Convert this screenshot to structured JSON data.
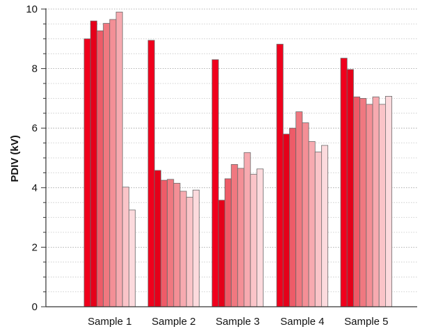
{
  "chart_data": {
    "type": "bar",
    "title": "",
    "xlabel": "",
    "ylabel": "PDIV (kV)",
    "ylim": [
      0,
      10
    ],
    "yticks": [
      0,
      2,
      4,
      6,
      8,
      10
    ],
    "minor_y_step": 0.5,
    "grid": "horizontal dotted, major and minor",
    "legend": "none",
    "categories": [
      "Sample 1",
      "Sample 2",
      "Sample 3",
      "Sample 4",
      "Sample 5"
    ],
    "bar_colors": [
      "#f0001c",
      "#e5001a",
      "#ee5b68",
      "#f07880",
      "#f48f96",
      "#f7aab0",
      "#fac4c8",
      "#fcdadd",
      "#fdeaec"
    ],
    "series": [
      {
        "values": [
          9.0,
          8.95,
          8.3,
          8.82,
          8.35
        ]
      },
      {
        "values": [
          9.6,
          4.58,
          3.58,
          5.8,
          7.97
        ]
      },
      {
        "values": [
          9.27,
          4.25,
          4.3,
          6.0,
          7.05
        ]
      },
      {
        "values": [
          9.52,
          4.28,
          4.78,
          6.55,
          7.0
        ]
      },
      {
        "values": [
          9.65,
          4.15,
          4.65,
          6.18,
          6.8
        ]
      },
      {
        "values": [
          9.9,
          3.88,
          5.18,
          5.55,
          7.05
        ]
      },
      {
        "values": [
          4.02,
          3.68,
          4.45,
          5.2,
          6.8
        ]
      },
      {
        "values": [
          3.25,
          3.92,
          4.63,
          5.42,
          7.07
        ]
      }
    ]
  }
}
